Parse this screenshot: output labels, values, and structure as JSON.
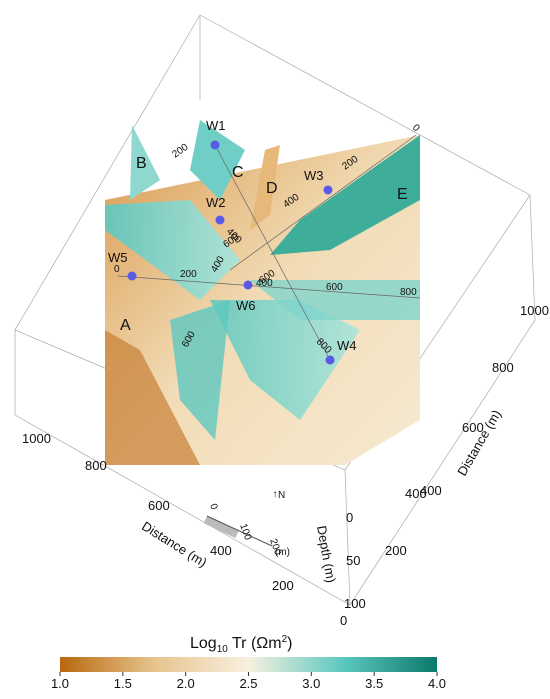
{
  "figure": {
    "wells": [
      "W1",
      "W2",
      "W3",
      "W4",
      "W5",
      "W6"
    ],
    "zones": [
      "A",
      "B",
      "C",
      "D",
      "E"
    ],
    "profile_ticks": [
      0,
      200,
      400,
      600,
      800,
      200,
      400,
      600,
      600,
      400,
      0,
      200,
      400,
      600,
      800
    ],
    "axes": {
      "x": {
        "label": "Distance (m)",
        "ticks": [
          1000,
          800,
          600,
          400,
          200
        ]
      },
      "y": {
        "label": "Distance (m)",
        "ticks": [
          1000,
          800,
          600,
          400
        ]
      },
      "z": {
        "label": "Depth (m)",
        "ticks": [
          0,
          50,
          100
        ]
      },
      "base": {
        "ticks": [
          400,
          200,
          0
        ]
      }
    },
    "scale_bar": {
      "ticks": [
        0,
        100,
        200
      ],
      "unit": "(m)"
    },
    "north": "N",
    "colorbar": {
      "title": [
        "Log",
        "10",
        " Tr (Ωm",
        "2",
        ")"
      ],
      "clim": [
        1,
        4
      ],
      "ticks": [
        {
          "value": 1,
          "label": "1.0"
        },
        {
          "value": 1.5,
          "label": "1.5"
        },
        {
          "value": 2,
          "label": "2.0"
        },
        {
          "value": 2.5,
          "label": "2.5"
        },
        {
          "value": 3,
          "label": "3.0"
        },
        {
          "value": 3.5,
          "label": "3.5"
        },
        {
          "value": 4,
          "label": "4.0"
        }
      ],
      "colors": [
        "#b8680d",
        "#e6c48c",
        "#f8f0e0",
        "#5cc8c0",
        "#0a7a6a"
      ]
    }
  }
}
